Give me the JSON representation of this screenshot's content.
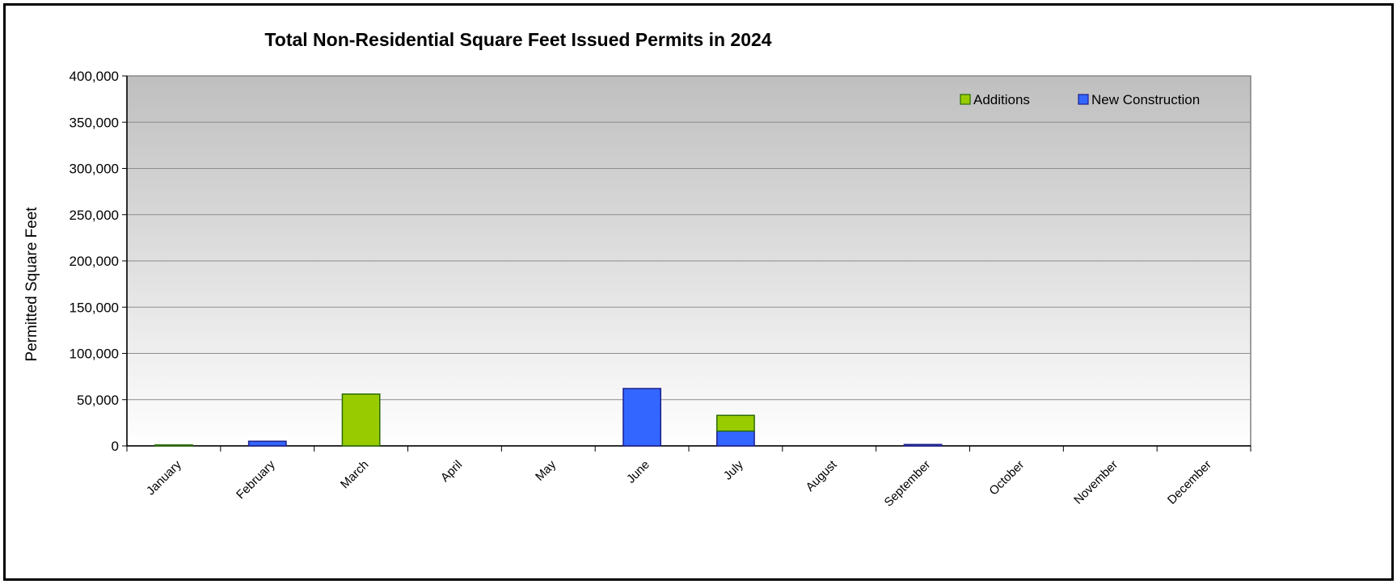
{
  "chart_data": {
    "type": "bar",
    "stacked": true,
    "title": "Total Non-Residential Square Feet Issued Permits in 2024",
    "xlabel": "",
    "ylabel": "Permitted Square Feet",
    "ylim": [
      0,
      400000
    ],
    "yticks": [
      0,
      50000,
      100000,
      150000,
      200000,
      250000,
      300000,
      350000,
      400000
    ],
    "ytick_labels": [
      "0",
      "50,000",
      "100,000",
      "150,000",
      "200,000",
      "250,000",
      "300,000",
      "350,000",
      "400,000"
    ],
    "categories": [
      "January",
      "February",
      "March",
      "April",
      "May",
      "June",
      "July",
      "August",
      "September",
      "October",
      "November",
      "December"
    ],
    "series": [
      {
        "name": "New Construction",
        "color": "#3366ff",
        "edge": "#1f1f8c",
        "values": [
          0,
          5000,
          0,
          0,
          0,
          62000,
          16000,
          0,
          1500,
          0,
          0,
          0
        ]
      },
      {
        "name": "Additions",
        "color": "#99cc00",
        "edge": "#2a6b00",
        "values": [
          1000,
          0,
          56000,
          0,
          0,
          0,
          17000,
          0,
          0,
          0,
          0,
          0
        ]
      }
    ],
    "legend": {
      "placement": "top-right",
      "order": [
        "Additions",
        "New Construction"
      ]
    },
    "grid": true,
    "plot_background": {
      "top": "#bfbfbf",
      "bottom": "#ffffff"
    }
  }
}
